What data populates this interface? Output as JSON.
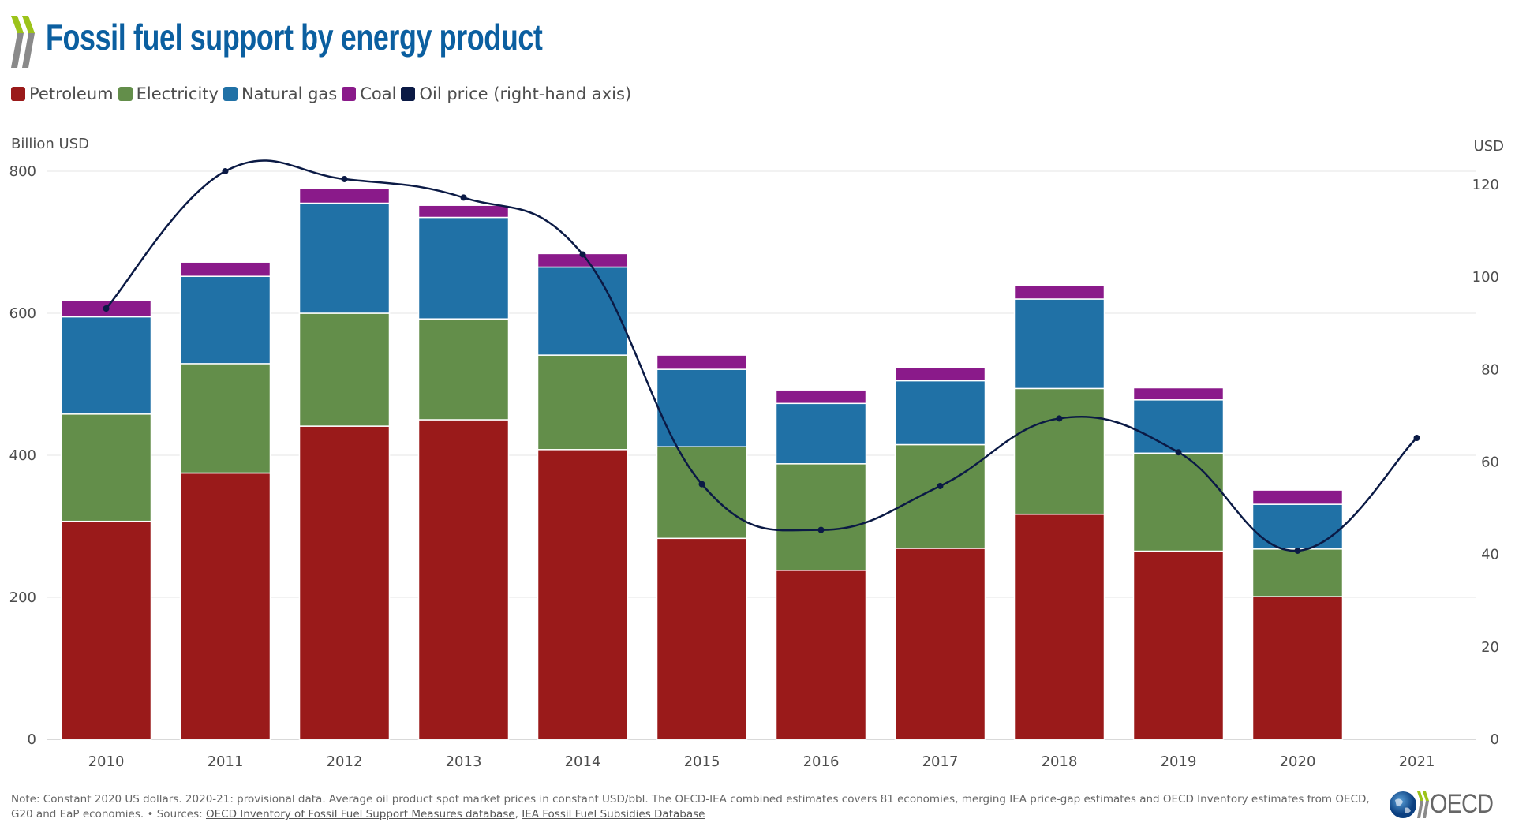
{
  "header": {
    "title": "Fossil fuel support by energy product"
  },
  "colors": {
    "title": "#0b5fa0",
    "petroleum": "#9a1a1a",
    "electricity": "#638e4a",
    "natural_gas": "#2071a6",
    "coal": "#8a1a8a",
    "oil_price": "#0b1a45"
  },
  "legend": [
    {
      "label": "Petroleum",
      "color": "#9a1a1a"
    },
    {
      "label": "Electricity",
      "color": "#638e4a"
    },
    {
      "label": "Natural gas",
      "color": "#2071a6"
    },
    {
      "label": "Coal",
      "color": "#8a1a8a"
    },
    {
      "label": "Oil price (right-hand axis)",
      "color": "#0b1a45"
    }
  ],
  "chart_data": {
    "type": "bar",
    "stacked": true,
    "title": "Fossil fuel support by energy product",
    "ylabel": "Billion USD",
    "y2label": "USD",
    "ylim": [
      0,
      800
    ],
    "y2lim": [
      0,
      123
    ],
    "yticks": [
      0,
      200,
      400,
      600,
      800
    ],
    "y2ticks": [
      0,
      20,
      40,
      60,
      80,
      100,
      120
    ],
    "grid": true,
    "legend_position": "top-left",
    "categories": [
      "2010",
      "2011",
      "2012",
      "2013",
      "2014",
      "2015",
      "2016",
      "2017",
      "2018",
      "2019",
      "2020",
      "2021"
    ],
    "series": [
      {
        "name": "Petroleum",
        "color": "#9a1a1a",
        "values": [
          307,
          375,
          441,
          450,
          408,
          283,
          238,
          269,
          317,
          265,
          201,
          null
        ]
      },
      {
        "name": "Electricity",
        "color": "#638e4a",
        "values": [
          151,
          154,
          159,
          142,
          133,
          129,
          150,
          146,
          177,
          138,
          67,
          null
        ]
      },
      {
        "name": "Natural gas",
        "color": "#2071a6",
        "values": [
          137,
          123,
          155,
          143,
          124,
          109,
          85,
          90,
          126,
          75,
          63,
          null
        ]
      },
      {
        "name": "Coal",
        "color": "#8a1a8a",
        "values": [
          23,
          20,
          21,
          17,
          19,
          20,
          19,
          19,
          19,
          17,
          20,
          null
        ]
      }
    ],
    "line_series": {
      "name": "Oil price (right-hand axis)",
      "axis": "right",
      "type": "line",
      "color": "#0b1a45",
      "values": [
        93.2,
        122.9,
        121.2,
        117.2,
        104.9,
        55.2,
        45.3,
        54.8,
        69.4,
        62.1,
        40.8,
        65.2
      ]
    }
  },
  "footer": {
    "note": "Note: Constant 2020 US dollars. 2020-21: provisional data. Average oil product spot market prices in constant USD/bbl. The OECD-IEA combined estimates covers 81 economies, merging IEA price-gap estimates and OECD Inventory estimates from OECD, G20 and EaP economies. • Sources: ",
    "source1": "OECD Inventory of Fossil Fuel Support Measures database",
    "separator": ", ",
    "source2": "IEA Fossil Fuel Subsidies Database"
  },
  "brand": {
    "logo_text": "OECD"
  }
}
